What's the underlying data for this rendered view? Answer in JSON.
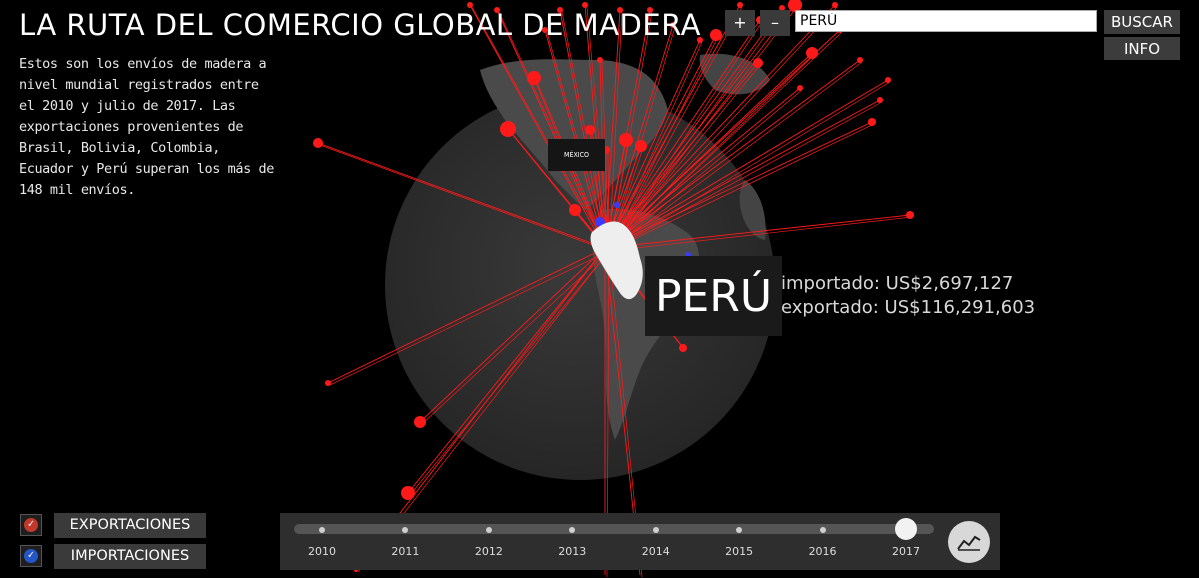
{
  "header": {
    "title": "LA RUTA DEL COMERCIO GLOBAL DE MADERA",
    "intro": "Estos son los envíos de madera a nivel mundial registrados entre el 2010 y julio de 2017. Las exportaciones provenientes de Brasil, Bolivia, Colombia, Ecuador y Perú superan los más de 148 mil envíos."
  },
  "controls": {
    "zoom_in": "+",
    "zoom_out": "–",
    "search_value": "PERÚ",
    "search_button": "BUSCAR",
    "info_button": "INFO"
  },
  "map": {
    "hover_label": "MÉXICO",
    "selected_country": "PERÚ",
    "imported_label": "importado: US$2,697,127",
    "exported_label": "exportado: US$116,291,603"
  },
  "filters": {
    "exports_label": "EXPORTACIONES",
    "imports_label": "IMPORTACIONES",
    "exports_checked": true,
    "imports_checked": true,
    "exports_color": "#c0392b",
    "imports_color": "#2456c8"
  },
  "timeline": {
    "years": [
      "2010",
      "2011",
      "2012",
      "2013",
      "2014",
      "2015",
      "2016",
      "2017"
    ],
    "selected": "2017"
  },
  "colors": {
    "route": "#ff1a1a",
    "import_route": "#3b3bff",
    "panel": "#3a3a3a"
  },
  "icons": {
    "chart_toggle": "line-chart-icon",
    "check": "check-icon"
  }
}
